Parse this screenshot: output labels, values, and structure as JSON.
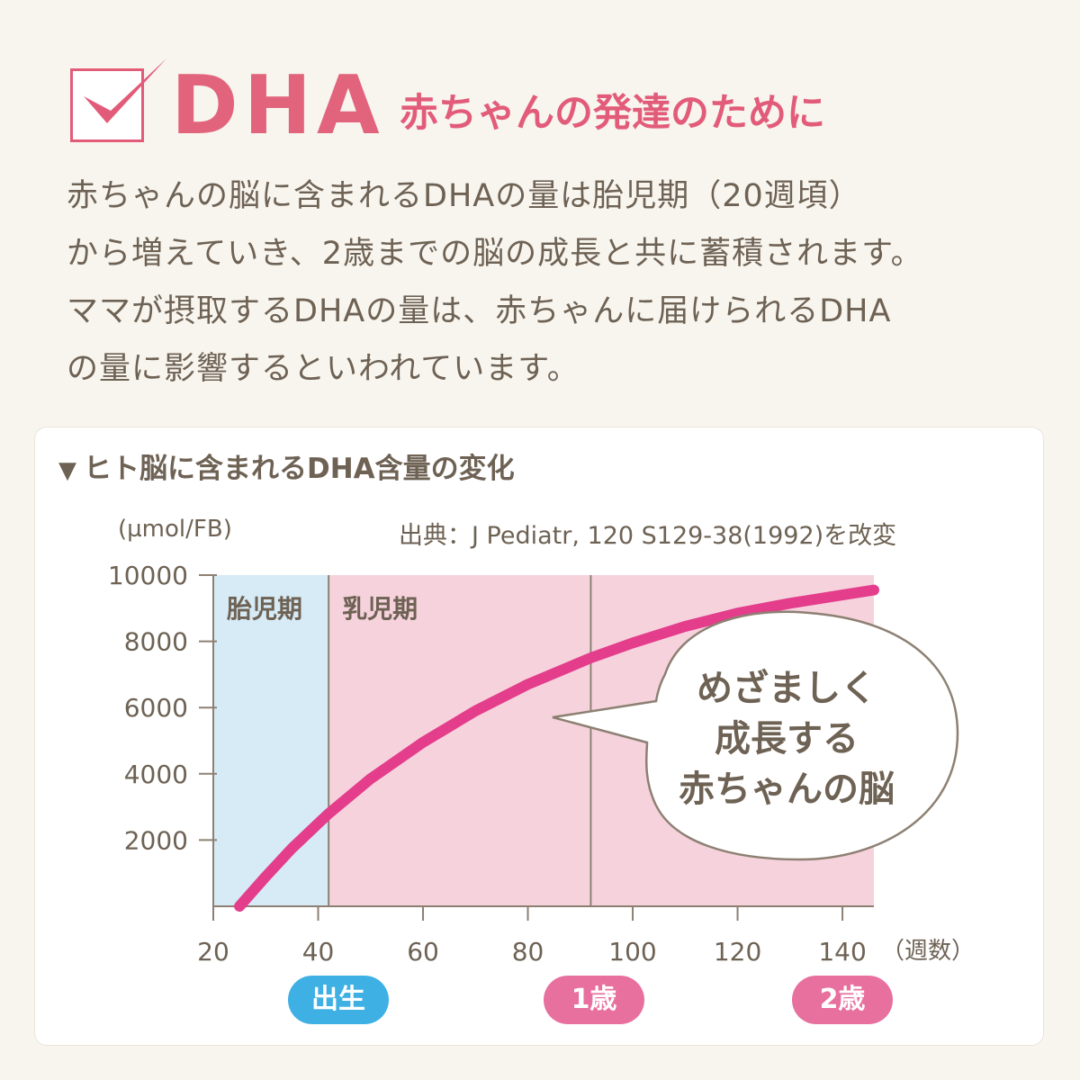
{
  "header": {
    "title": "DHA",
    "subtitle": "赤ちゃんの発達のために"
  },
  "intro": {
    "lines": [
      "赤ちゃんの脳に含まれるDHAの量は胎児期（20週頃）",
      "から増えていき、2歳までの脳の成長と共に蓄積されます。",
      "ママが摂取するDHAの量は、赤ちゃんに届けられるDHA",
      "の量に影響するといわれています。"
    ]
  },
  "card": {
    "title": "ヒト脳に含まれるDHA含量の変化",
    "title_marker": "▼"
  },
  "colors": {
    "accent": "#e25c7a",
    "curve": "#e33d8c",
    "fetal_region": "#d6ebf6",
    "infant_region": "#f6d3dc",
    "text": "#6e6254",
    "birth_badge": "#3fb0e4",
    "age_badge": "#e8709e"
  },
  "chart_data": {
    "type": "line",
    "ylabel": "(µmol/FB)",
    "xlabel": "（週数）",
    "source": "出典：J Pediatr, 120 S129-38(1992)を改変",
    "xlim": [
      20,
      146
    ],
    "ylim": [
      0,
      10000
    ],
    "x_ticks": [
      20,
      40,
      60,
      80,
      100,
      120,
      140
    ],
    "y_ticks": [
      2000,
      4000,
      6000,
      8000,
      10000
    ],
    "regions": [
      {
        "label": "胎児期",
        "x_start": 20,
        "x_end": 42
      },
      {
        "label": "乳児期",
        "x_start": 42,
        "x_end": 146
      }
    ],
    "markers": [
      {
        "label": "出生",
        "x": 42
      },
      {
        "label": "1歳",
        "x": 92
      },
      {
        "label": "2歳",
        "x": 141
      }
    ],
    "series": [
      {
        "x": [
          25,
          30,
          35,
          40,
          42,
          50,
          60,
          70,
          80,
          92,
          100,
          110,
          120,
          130,
          140,
          146
        ],
        "values": [
          0,
          900,
          1750,
          2500,
          2800,
          3850,
          4950,
          5900,
          6700,
          7500,
          7950,
          8450,
          8850,
          9150,
          9400,
          9550
        ]
      }
    ],
    "annotation": [
      "めざましく",
      "成長する",
      "赤ちゃんの脳"
    ]
  }
}
